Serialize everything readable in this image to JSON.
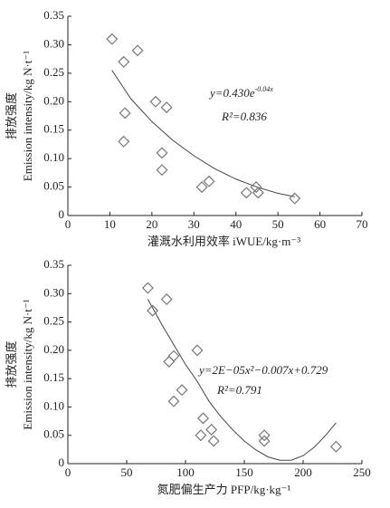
{
  "chart_data": [
    {
      "type": "scatter",
      "x_label": "灌溉水利用效率 iWUE/kg·m⁻³",
      "y_label_cn": "排放强度",
      "y_label": "Emission intensity/kg N·t⁻¹",
      "equation": "y=0.430e",
      "equation_exp": "-0.04x",
      "r_squared": "R²=0.836",
      "x": [
        10.5,
        13.3,
        16.6,
        13.6,
        13.3,
        20.9,
        23.5,
        22.4,
        22.4,
        31.9,
        33.6,
        42.5,
        44.8,
        45.3,
        54
      ],
      "values": [
        0.31,
        0.27,
        0.29,
        0.18,
        0.13,
        0.2,
        0.19,
        0.11,
        0.08,
        0.05,
        0.06,
        0.04,
        0.05,
        0.04,
        0.03
      ],
      "color": "#777777",
      "trendline": {
        "x": [
          10.5,
          15,
          20,
          25,
          30,
          35,
          40,
          45,
          50,
          54
        ],
        "values": [
          0.255,
          0.205,
          0.165,
          0.132,
          0.105,
          0.082,
          0.064,
          0.05,
          0.039,
          0.033
        ],
        "color": "#444444"
      },
      "xlim": [
        0,
        70
      ],
      "xticks": [
        0,
        10,
        20,
        30,
        40,
        50,
        60,
        70
      ],
      "ylim": [
        0,
        0.35
      ],
      "yticks": [
        0,
        0.05,
        {
          "value": 0.1,
          "label": "0.10"
        },
        0.15,
        {
          "value": 0.2,
          "label": "0.20"
        },
        0.25,
        {
          "value": 0.3,
          "label": "0.30"
        },
        0.35
      ]
    },
    {
      "type": "scatter",
      "x_label": "氮肥偏生产力 PFP/kg·kg⁻¹",
      "y_label_cn": "排放强度",
      "y_label": "Emission intensity/kg N·t⁻¹",
      "equation": "y=2E−05x²−0.007x+0.729",
      "r_squared": "R²=0.791",
      "x": [
        68,
        72,
        84,
        90,
        86,
        90,
        97,
        110,
        115,
        113,
        122,
        124,
        167,
        167,
        228
      ],
      "values": [
        0.31,
        0.27,
        0.29,
        0.19,
        0.18,
        0.11,
        0.13,
        0.2,
        0.08,
        0.05,
        0.06,
        0.04,
        0.05,
        0.04,
        0.03
      ],
      "color": "#777777",
      "trendline": {
        "x": [
          68,
          80,
          90,
          100,
          110,
          120,
          130,
          140,
          150,
          160,
          170,
          180,
          190,
          200,
          210,
          220,
          228
        ],
        "values": [
          0.29,
          0.245,
          0.21,
          0.175,
          0.145,
          0.11,
          0.083,
          0.06,
          0.04,
          0.024,
          0.012,
          0.006,
          0.006,
          0.014,
          0.03,
          0.052,
          0.072
        ],
        "color": "#444444"
      },
      "xlim": [
        0,
        250
      ],
      "xticks": [
        0,
        50,
        100,
        150,
        200,
        250
      ],
      "ylim": [
        0,
        0.35
      ],
      "yticks": [
        0,
        0.05,
        {
          "value": 0.1,
          "label": "0.10"
        },
        0.15,
        {
          "value": 0.2,
          "label": "0.20"
        },
        0.25,
        {
          "value": 0.3,
          "label": "0.30"
        },
        0.35
      ]
    }
  ]
}
